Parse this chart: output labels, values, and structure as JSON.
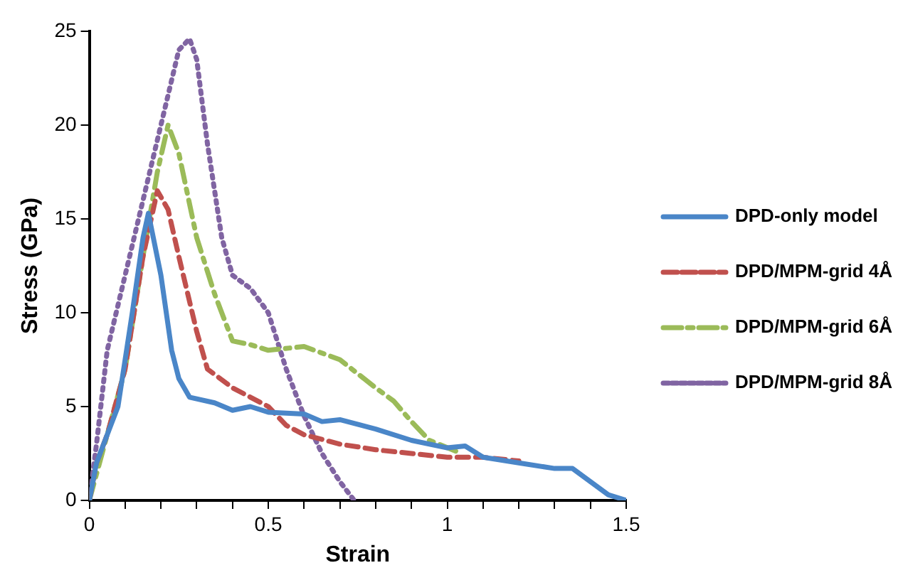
{
  "chart_data": {
    "type": "line",
    "xlabel": "Strain",
    "ylabel": "Stress (GPa)",
    "xlim": [
      0,
      1.5
    ],
    "ylim": [
      0,
      25
    ],
    "xticks": [
      0,
      {
        "value": 0.1,
        "label": null
      },
      {
        "value": 0.2,
        "label": null
      },
      {
        "value": 0.3,
        "label": null
      },
      {
        "value": 0.4,
        "label": null
      },
      0.5,
      {
        "value": 0.6,
        "label": null
      },
      {
        "value": 0.7,
        "label": null
      },
      {
        "value": 0.8,
        "label": null
      },
      {
        "value": 0.9,
        "label": null
      },
      1,
      {
        "value": 1.1,
        "label": null
      },
      {
        "value": 1.2,
        "label": null
      },
      {
        "value": 1.3,
        "label": null
      },
      {
        "value": 1.4,
        "label": null
      },
      1.5
    ],
    "yticks": [
      0,
      5,
      10,
      15,
      20,
      25
    ],
    "grid": false,
    "legend": "right",
    "marker": "none",
    "series": [
      {
        "name": "DPD-only model",
        "color": "#4a86c8",
        "line_style": "solid",
        "x": [
          0,
          0.02,
          0.05,
          0.08,
          0.12,
          0.15,
          0.165,
          0.2,
          0.23,
          0.25,
          0.28,
          0.35,
          0.4,
          0.45,
          0.5,
          0.6,
          0.65,
          0.7,
          0.8,
          0.9,
          1.0,
          1.05,
          1.1,
          1.2,
          1.3,
          1.35,
          1.4,
          1.45,
          1.5
        ],
        "values": [
          0,
          2,
          3.5,
          5,
          10,
          14,
          15.3,
          12,
          8,
          6.5,
          5.5,
          5.2,
          4.8,
          5.0,
          4.7,
          4.6,
          4.2,
          4.3,
          3.8,
          3.2,
          2.8,
          2.9,
          2.3,
          2.0,
          1.7,
          1.7,
          1.0,
          0.3,
          0
        ]
      },
      {
        "name": "DPD/MPM-grid 4Å",
        "color": "#c0504d",
        "line_style": "dashed",
        "x": [
          0,
          0.02,
          0.05,
          0.1,
          0.15,
          0.19,
          0.22,
          0.25,
          0.3,
          0.33,
          0.4,
          0.45,
          0.5,
          0.55,
          0.6,
          0.7,
          0.8,
          0.9,
          1.0,
          1.1,
          1.2
        ],
        "values": [
          0,
          2,
          3.5,
          7,
          13,
          16.5,
          15.5,
          13,
          9,
          7,
          6,
          5.5,
          5.0,
          4.0,
          3.5,
          3.0,
          2.7,
          2.5,
          2.3,
          2.3,
          2.1
        ]
      },
      {
        "name": "DPD/MPM-grid 6Å",
        "color": "#9bbb59",
        "line_style": "dashdot",
        "x": [
          0,
          0.05,
          0.1,
          0.15,
          0.19,
          0.22,
          0.25,
          0.3,
          0.35,
          0.4,
          0.45,
          0.5,
          0.6,
          0.7,
          0.8,
          0.85,
          0.9,
          0.95,
          1.04
        ],
        "values": [
          0,
          3.5,
          7,
          13,
          17.5,
          20,
          18.5,
          14,
          11,
          8.5,
          8.3,
          8.0,
          8.2,
          7.5,
          6.0,
          5.3,
          4.2,
          3.2,
          2.5
        ]
      },
      {
        "name": "DPD/MPM-grid 8Å",
        "color": "#8064a2",
        "line_style": "dotted",
        "x": [
          0,
          0.02,
          0.05,
          0.1,
          0.15,
          0.2,
          0.25,
          0.28,
          0.3,
          0.33,
          0.37,
          0.4,
          0.45,
          0.5,
          0.55,
          0.6,
          0.65,
          0.7,
          0.74
        ],
        "values": [
          0,
          3,
          8,
          12,
          16,
          20,
          24,
          24.6,
          23.5,
          19,
          14,
          12,
          11.3,
          10,
          7,
          4.5,
          2.5,
          1.0,
          0
        ]
      }
    ]
  }
}
